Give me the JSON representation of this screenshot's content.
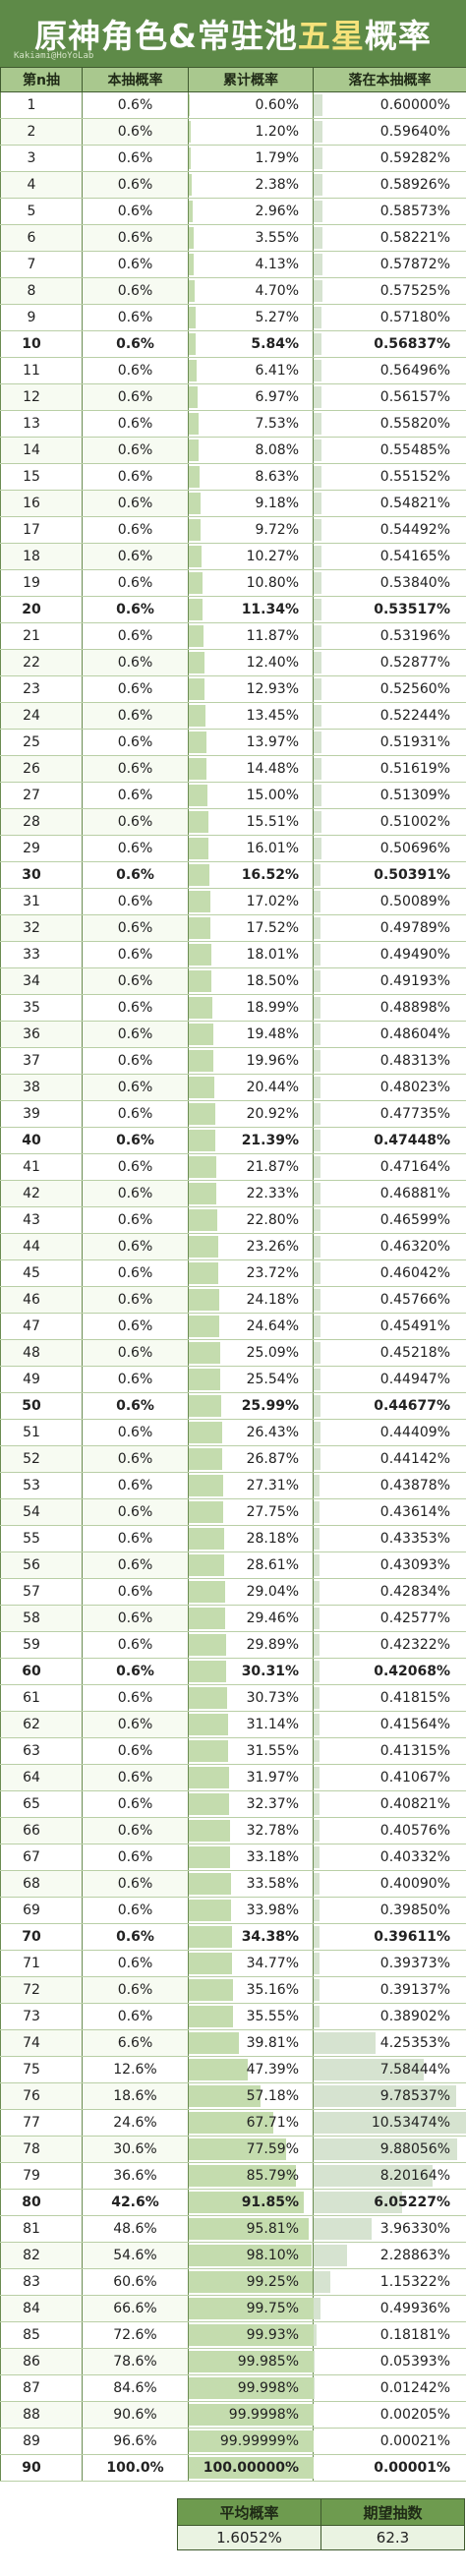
{
  "title": {
    "main": "原神角色&常驻池",
    "highlight": "五星",
    "tail": "概率"
  },
  "watermark": "Kakiami@HoYoLab",
  "colors": {
    "header_bg": "#5e8a48",
    "title_highlight": "#f6e27a",
    "cumulative_bar": "#c4dcae",
    "conditional_bar": "#d6e3d0"
  },
  "table": {
    "headers": [
      "第n抽",
      "本抽概率",
      "累计概率",
      "落在本抽概率"
    ]
  },
  "summary": {
    "headers": [
      "平均概率",
      "期望抽数"
    ],
    "values": [
      "1.6052%",
      "62.3"
    ]
  },
  "chart_data": {
    "type": "table",
    "title": "原神角色&常驻池五星概率",
    "columns": [
      "第n抽",
      "本抽概率",
      "累计概率",
      "落在本抽概率"
    ],
    "rows": [
      [
        "1",
        "0.6%",
        "0.60%",
        "0.60000%"
      ],
      [
        "2",
        "0.6%",
        "1.20%",
        "0.59640%"
      ],
      [
        "3",
        "0.6%",
        "1.79%",
        "0.59282%"
      ],
      [
        "4",
        "0.6%",
        "2.38%",
        "0.58926%"
      ],
      [
        "5",
        "0.6%",
        "2.96%",
        "0.58573%"
      ],
      [
        "6",
        "0.6%",
        "3.55%",
        "0.58221%"
      ],
      [
        "7",
        "0.6%",
        "4.13%",
        "0.57872%"
      ],
      [
        "8",
        "0.6%",
        "4.70%",
        "0.57525%"
      ],
      [
        "9",
        "0.6%",
        "5.27%",
        "0.57180%"
      ],
      [
        "10",
        "0.6%",
        "5.84%",
        "0.56837%"
      ],
      [
        "11",
        "0.6%",
        "6.41%",
        "0.56496%"
      ],
      [
        "12",
        "0.6%",
        "6.97%",
        "0.56157%"
      ],
      [
        "13",
        "0.6%",
        "7.53%",
        "0.55820%"
      ],
      [
        "14",
        "0.6%",
        "8.08%",
        "0.55485%"
      ],
      [
        "15",
        "0.6%",
        "8.63%",
        "0.55152%"
      ],
      [
        "16",
        "0.6%",
        "9.18%",
        "0.54821%"
      ],
      [
        "17",
        "0.6%",
        "9.72%",
        "0.54492%"
      ],
      [
        "18",
        "0.6%",
        "10.27%",
        "0.54165%"
      ],
      [
        "19",
        "0.6%",
        "10.80%",
        "0.53840%"
      ],
      [
        "20",
        "0.6%",
        "11.34%",
        "0.53517%"
      ],
      [
        "21",
        "0.6%",
        "11.87%",
        "0.53196%"
      ],
      [
        "22",
        "0.6%",
        "12.40%",
        "0.52877%"
      ],
      [
        "23",
        "0.6%",
        "12.93%",
        "0.52560%"
      ],
      [
        "24",
        "0.6%",
        "13.45%",
        "0.52244%"
      ],
      [
        "25",
        "0.6%",
        "13.97%",
        "0.51931%"
      ],
      [
        "26",
        "0.6%",
        "14.48%",
        "0.51619%"
      ],
      [
        "27",
        "0.6%",
        "15.00%",
        "0.51309%"
      ],
      [
        "28",
        "0.6%",
        "15.51%",
        "0.51002%"
      ],
      [
        "29",
        "0.6%",
        "16.01%",
        "0.50696%"
      ],
      [
        "30",
        "0.6%",
        "16.52%",
        "0.50391%"
      ],
      [
        "31",
        "0.6%",
        "17.02%",
        "0.50089%"
      ],
      [
        "32",
        "0.6%",
        "17.52%",
        "0.49789%"
      ],
      [
        "33",
        "0.6%",
        "18.01%",
        "0.49490%"
      ],
      [
        "34",
        "0.6%",
        "18.50%",
        "0.49193%"
      ],
      [
        "35",
        "0.6%",
        "18.99%",
        "0.48898%"
      ],
      [
        "36",
        "0.6%",
        "19.48%",
        "0.48604%"
      ],
      [
        "37",
        "0.6%",
        "19.96%",
        "0.48313%"
      ],
      [
        "38",
        "0.6%",
        "20.44%",
        "0.48023%"
      ],
      [
        "39",
        "0.6%",
        "20.92%",
        "0.47735%"
      ],
      [
        "40",
        "0.6%",
        "21.39%",
        "0.47448%"
      ],
      [
        "41",
        "0.6%",
        "21.87%",
        "0.47164%"
      ],
      [
        "42",
        "0.6%",
        "22.33%",
        "0.46881%"
      ],
      [
        "43",
        "0.6%",
        "22.80%",
        "0.46599%"
      ],
      [
        "44",
        "0.6%",
        "23.26%",
        "0.46320%"
      ],
      [
        "45",
        "0.6%",
        "23.72%",
        "0.46042%"
      ],
      [
        "46",
        "0.6%",
        "24.18%",
        "0.45766%"
      ],
      [
        "47",
        "0.6%",
        "24.64%",
        "0.45491%"
      ],
      [
        "48",
        "0.6%",
        "25.09%",
        "0.45218%"
      ],
      [
        "49",
        "0.6%",
        "25.54%",
        "0.44947%"
      ],
      [
        "50",
        "0.6%",
        "25.99%",
        "0.44677%"
      ],
      [
        "51",
        "0.6%",
        "26.43%",
        "0.44409%"
      ],
      [
        "52",
        "0.6%",
        "26.87%",
        "0.44142%"
      ],
      [
        "53",
        "0.6%",
        "27.31%",
        "0.43878%"
      ],
      [
        "54",
        "0.6%",
        "27.75%",
        "0.43614%"
      ],
      [
        "55",
        "0.6%",
        "28.18%",
        "0.43353%"
      ],
      [
        "56",
        "0.6%",
        "28.61%",
        "0.43093%"
      ],
      [
        "57",
        "0.6%",
        "29.04%",
        "0.42834%"
      ],
      [
        "58",
        "0.6%",
        "29.46%",
        "0.42577%"
      ],
      [
        "59",
        "0.6%",
        "29.89%",
        "0.42322%"
      ],
      [
        "60",
        "0.6%",
        "30.31%",
        "0.42068%"
      ],
      [
        "61",
        "0.6%",
        "30.73%",
        "0.41815%"
      ],
      [
        "62",
        "0.6%",
        "31.14%",
        "0.41564%"
      ],
      [
        "63",
        "0.6%",
        "31.55%",
        "0.41315%"
      ],
      [
        "64",
        "0.6%",
        "31.97%",
        "0.41067%"
      ],
      [
        "65",
        "0.6%",
        "32.37%",
        "0.40821%"
      ],
      [
        "66",
        "0.6%",
        "32.78%",
        "0.40576%"
      ],
      [
        "67",
        "0.6%",
        "33.18%",
        "0.40332%"
      ],
      [
        "68",
        "0.6%",
        "33.58%",
        "0.40090%"
      ],
      [
        "69",
        "0.6%",
        "33.98%",
        "0.39850%"
      ],
      [
        "70",
        "0.6%",
        "34.38%",
        "0.39611%"
      ],
      [
        "71",
        "0.6%",
        "34.77%",
        "0.39373%"
      ],
      [
        "72",
        "0.6%",
        "35.16%",
        "0.39137%"
      ],
      [
        "73",
        "0.6%",
        "35.55%",
        "0.38902%"
      ],
      [
        "74",
        "6.6%",
        "39.81%",
        "4.25353%"
      ],
      [
        "75",
        "12.6%",
        "47.39%",
        "7.58444%"
      ],
      [
        "76",
        "18.6%",
        "57.18%",
        "9.78537%"
      ],
      [
        "77",
        "24.6%",
        "67.71%",
        "10.53474%"
      ],
      [
        "78",
        "30.6%",
        "77.59%",
        "9.88056%"
      ],
      [
        "79",
        "36.6%",
        "85.79%",
        "8.20164%"
      ],
      [
        "80",
        "42.6%",
        "91.85%",
        "6.05227%"
      ],
      [
        "81",
        "48.6%",
        "95.81%",
        "3.96330%"
      ],
      [
        "82",
        "54.6%",
        "98.10%",
        "2.28863%"
      ],
      [
        "83",
        "60.6%",
        "99.25%",
        "1.15322%"
      ],
      [
        "84",
        "66.6%",
        "99.75%",
        "0.49936%"
      ],
      [
        "85",
        "72.6%",
        "99.93%",
        "0.18181%"
      ],
      [
        "86",
        "78.6%",
        "99.985%",
        "0.05393%"
      ],
      [
        "87",
        "84.6%",
        "99.998%",
        "0.01242%"
      ],
      [
        "88",
        "90.6%",
        "99.9998%",
        "0.00205%"
      ],
      [
        "89",
        "96.6%",
        "99.99999%",
        "0.00021%"
      ],
      [
        "90",
        "100.0%",
        "100.00000%",
        "0.00001%"
      ]
    ],
    "bold_rows": [
      10,
      20,
      30,
      40,
      50,
      60,
      70,
      80,
      90
    ],
    "cumulative_range": [
      0,
      100
    ],
    "conditional_range": [
      0,
      10.53474
    ]
  }
}
